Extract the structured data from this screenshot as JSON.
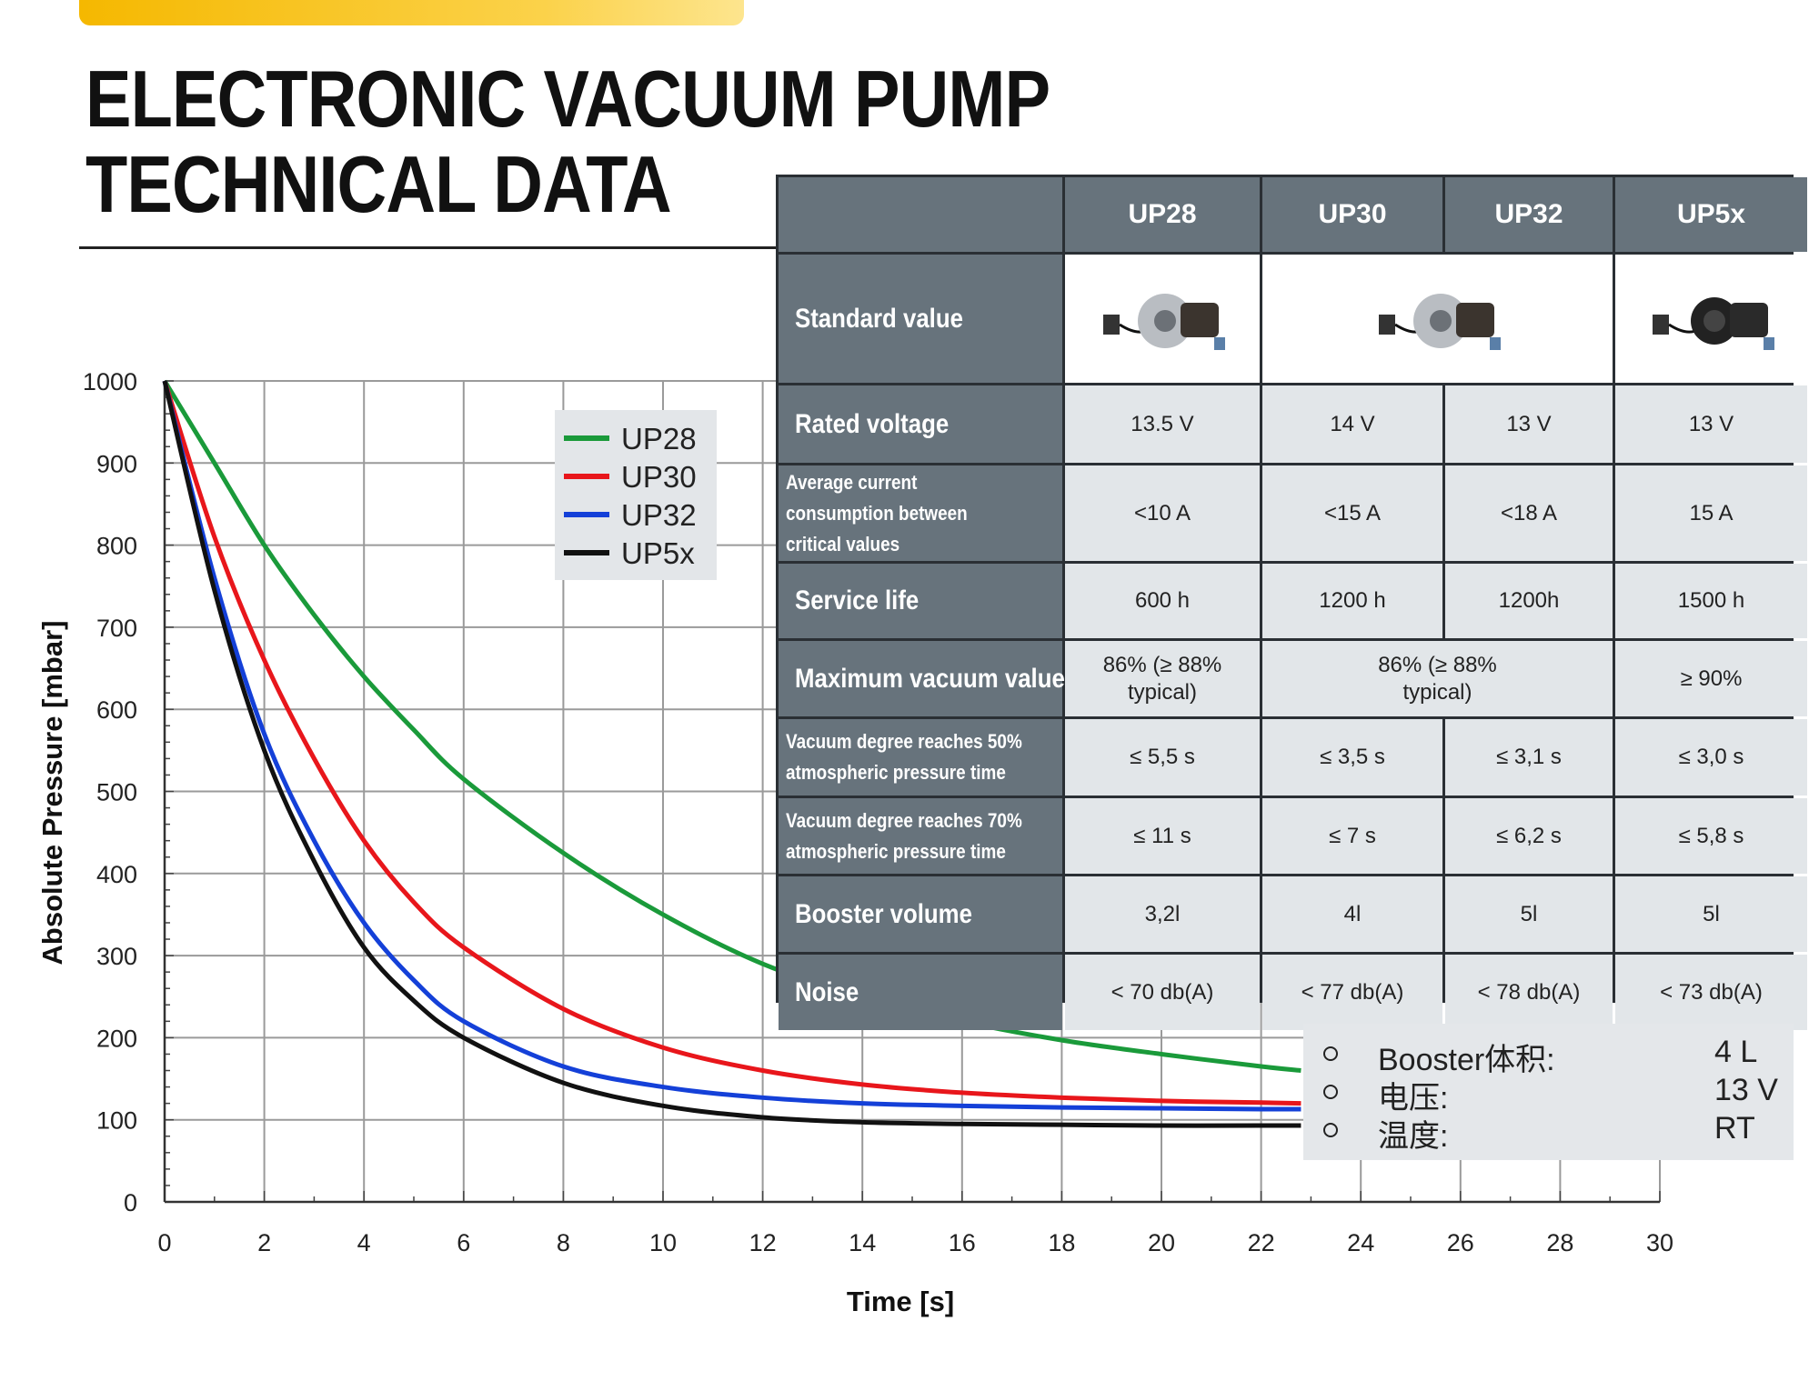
{
  "header": {
    "title_line1": "ELECTRONIC VACUUM PUMP",
    "title_line2": "TECHNICAL DATA",
    "accent_color": "#f5b800"
  },
  "table": {
    "columns": [
      "UP28",
      "UP30",
      "UP32",
      "UP5x"
    ],
    "standard_value_label": "Standard value",
    "standard_value_images": [
      "UP28 pump photo",
      "UP30/UP32 pump photo",
      "UP5x pump photo"
    ],
    "rows": [
      {
        "label": "Rated voltage",
        "cells": [
          "13.5 V",
          "14 V",
          "13 V",
          "13 V"
        ]
      },
      {
        "label": "Average current consumption between critical values",
        "cells": [
          "<10 A",
          "<15 A",
          "<18 A",
          "15 A"
        ]
      },
      {
        "label": "Service life",
        "cells": [
          "600 h",
          "1200 h",
          "1200h",
          "1500 h"
        ]
      },
      {
        "label": "Maximum vacuum value",
        "cells": [
          "86% (≥ 88% typical)",
          "86% (≥ 88% typical)",
          "≥ 90%"
        ]
      },
      {
        "label": "Vacuum degree reaches 50% atmospheric pressure time",
        "cells": [
          "≤ 5,5 s",
          "≤ 3,5 s",
          "≤ 3,1 s",
          "≤ 3,0 s"
        ]
      },
      {
        "label": "Vacuum degree reaches 70% atmospheric pressure time",
        "cells": [
          "≤ 11 s",
          "≤ 7 s",
          "≤ 6,2 s",
          "≤ 5,8 s"
        ]
      },
      {
        "label": "Booster volume",
        "cells": [
          "3,2l",
          "4l",
          "5l",
          "5l"
        ]
      },
      {
        "label": "Noise",
        "cells": [
          "< 70 db(A)",
          "< 77 db(A)",
          "< 78 db(A)",
          "< 73 db(A)"
        ]
      }
    ]
  },
  "conditions": [
    {
      "key": "Booster体积:",
      "value": "4 L"
    },
    {
      "key": "电压:",
      "value": "13 V"
    },
    {
      "key": "温度:",
      "value": "RT"
    }
  ],
  "chart_data": {
    "type": "line",
    "xlabel": "Time [s]",
    "ylabel": "Absolute Pressure [mbar]",
    "xlim": [
      0,
      30
    ],
    "ylim": [
      0,
      1000
    ],
    "xticks": [
      0,
      2,
      4,
      6,
      8,
      10,
      12,
      14,
      16,
      18,
      20,
      22,
      24,
      26,
      28,
      30
    ],
    "yticks": [
      0,
      100,
      200,
      300,
      400,
      500,
      600,
      700,
      800,
      900,
      1000
    ],
    "grid": true,
    "legend_position": "top-center",
    "x": [
      0,
      1,
      2,
      3,
      4,
      5,
      6,
      8,
      10,
      12,
      14,
      16,
      18,
      20,
      22,
      22.8
    ],
    "series": [
      {
        "name": "UP28",
        "color": "#1a9a3a",
        "values": [
          1000,
          900,
          800,
          715,
          640,
          575,
          515,
          425,
          350,
          290,
          250,
          220,
          197,
          180,
          165,
          160
        ]
      },
      {
        "name": "UP30",
        "color": "#e8161b",
        "values": [
          1000,
          810,
          660,
          540,
          440,
          365,
          310,
          235,
          188,
          160,
          143,
          133,
          127,
          123,
          121,
          120
        ]
      },
      {
        "name": "UP32",
        "color": "#1440d8",
        "values": [
          1000,
          760,
          570,
          440,
          340,
          270,
          220,
          165,
          140,
          127,
          120,
          117,
          115,
          114,
          113,
          113
        ]
      },
      {
        "name": "UP5x",
        "color": "#111111",
        "values": [
          1000,
          745,
          550,
          415,
          310,
          245,
          200,
          145,
          117,
          103,
          97,
          95,
          94,
          93,
          93,
          93
        ]
      }
    ]
  }
}
